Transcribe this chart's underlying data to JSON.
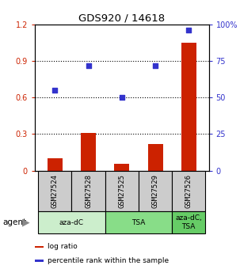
{
  "title": "GDS920 / 14618",
  "samples": [
    "GSM27524",
    "GSM27528",
    "GSM27525",
    "GSM27529",
    "GSM27526"
  ],
  "log_ratio": [
    0.1,
    0.31,
    0.055,
    0.22,
    1.05
  ],
  "percentile_rank": [
    55,
    72,
    50,
    72,
    96
  ],
  "ylim_left": [
    0,
    1.2
  ],
  "ylim_right": [
    0,
    100
  ],
  "yticks_left": [
    0,
    0.3,
    0.6,
    0.9,
    1.2
  ],
  "ytick_labels_left": [
    "0",
    "0.3",
    "0.6",
    "0.9",
    "1.2"
  ],
  "yticks_right": [
    0,
    25,
    50,
    75,
    100
  ],
  "ytick_labels_right": [
    "0",
    "25",
    "50",
    "75",
    "100%"
  ],
  "bar_color": "#cc2200",
  "dot_color": "#3333cc",
  "groups": [
    {
      "label": "aza-dC",
      "samples": [
        0,
        1
      ],
      "color": "#cceecc"
    },
    {
      "label": "TSA",
      "samples": [
        2,
        3
      ],
      "color": "#88dd88"
    },
    {
      "label": "aza-dC,\nTSA",
      "samples": [
        4
      ],
      "color": "#66cc66"
    }
  ],
  "sample_box_color": "#cccccc",
  "legend_items": [
    {
      "label": "log ratio",
      "color": "#cc2200"
    },
    {
      "label": "percentile rank within the sample",
      "color": "#3333cc"
    }
  ],
  "bar_width": 0.45
}
